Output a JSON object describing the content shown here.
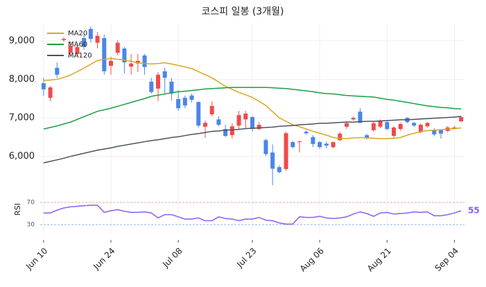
{
  "chart_data": [
    {
      "type": "candlestick",
      "title": "코스피 일봉 (3개월)",
      "categories": [
        "Jun 10",
        null,
        null,
        null,
        null,
        null,
        null,
        null,
        null,
        null,
        "Jun 24",
        null,
        null,
        null,
        null,
        null,
        null,
        null,
        null,
        null,
        "Jul 08",
        null,
        null,
        null,
        null,
        null,
        null,
        null,
        null,
        null,
        null,
        "Jul 23",
        null,
        null,
        null,
        null,
        null,
        null,
        null,
        null,
        null,
        "Aug 06",
        null,
        null,
        null,
        null,
        null,
        null,
        null,
        null,
        null,
        "Aug 21",
        null,
        null,
        null,
        null,
        null,
        null,
        null,
        null,
        null,
        "Sep 04",
        null
      ],
      "open": [
        7900,
        7520,
        8300,
        9020,
        8690,
        8660,
        9070,
        9310,
        8950,
        9070,
        8350,
        8690,
        8800,
        8330,
        8410,
        8620,
        7940,
        7760,
        8210,
        7940,
        7490,
        7520,
        7580,
        7410,
        6770,
        7090,
        6960,
        6710,
        6550,
        6800,
        6960,
        7020,
        6710,
        6420,
        6100,
        5720,
        5670,
        6370,
        6370,
        6640,
        6500,
        6370,
        6330,
        6240,
        6420,
        6770,
        6960,
        7160,
        6550,
        6680,
        6770,
        6890,
        6530,
        6710,
        7000,
        6870,
        6640,
        6780,
        6680,
        6680,
        6660,
        6730,
        6910
      ],
      "high": [
        8040,
        7830,
        8440,
        9090,
        8980,
        8900,
        9160,
        9380,
        9230,
        9160,
        8590,
        9020,
        8840,
        8660,
        8660,
        8660,
        8040,
        8190,
        8300,
        8040,
        7720,
        7580,
        7630,
        7430,
        6930,
        7430,
        7040,
        6820,
        6860,
        7180,
        7180,
        7040,
        6890,
        6460,
        6310,
        5770,
        6640,
        6400,
        6400,
        6680,
        6550,
        6400,
        6390,
        6390,
        6640,
        6910,
        7040,
        7250,
        6590,
        6910,
        6960,
        6930,
        6780,
        6870,
        7020,
        6890,
        6860,
        6890,
        6730,
        6710,
        6790,
        6790,
        7040
      ],
      "low": [
        7570,
        7430,
        8040,
        8980,
        8590,
        8600,
        8770,
        8950,
        8800,
        8120,
        8120,
        8620,
        8150,
        8120,
        8190,
        8120,
        7630,
        7430,
        7630,
        7450,
        7180,
        7250,
        7400,
        6750,
        6480,
        7040,
        6780,
        6500,
        6460,
        6710,
        6710,
        6640,
        6680,
        6010,
        5250,
        5560,
        5630,
        6210,
        6100,
        6560,
        6240,
        6190,
        6210,
        6210,
        6390,
        6710,
        6930,
        6860,
        6440,
        6640,
        6730,
        6680,
        6460,
        6660,
        6860,
        6770,
        6600,
        6750,
        6520,
        6460,
        6630,
        6700,
        6880
      ],
      "close": [
        7740,
        7790,
        8120,
        9050,
        8870,
        8840,
        8840,
        9050,
        9130,
        8210,
        8480,
        8950,
        8440,
        8410,
        8480,
        8320,
        7670,
        8120,
        8040,
        7630,
        7250,
        7320,
        7470,
        6800,
        6870,
        7310,
        6820,
        6530,
        6780,
        7070,
        7110,
        6710,
        6820,
        6060,
        5680,
        5590,
        6600,
        6240,
        6390,
        6600,
        6320,
        6240,
        6280,
        6370,
        6590,
        6860,
        7000,
        6870,
        6480,
        6860,
        6930,
        6710,
        6750,
        6840,
        6890,
        6800,
        6820,
        6870,
        6570,
        6590,
        6750,
        6750,
        7020
      ],
      "up_color": "#ef4b4b",
      "down_color": "#4a86e8",
      "series": [
        {
          "name": "MA20",
          "color": "#daa520",
          "values": [
            7970,
            7980,
            8000,
            8050,
            8110,
            8200,
            8290,
            8390,
            8490,
            8520,
            8540,
            8520,
            8500,
            8470,
            8430,
            8410,
            8400,
            8410,
            8430,
            8400,
            8360,
            8320,
            8280,
            8200,
            8120,
            8040,
            7930,
            7820,
            7740,
            7660,
            7600,
            7530,
            7430,
            7320,
            7160,
            7000,
            6910,
            6820,
            6770,
            6710,
            6650,
            6600,
            6550,
            6490,
            6470,
            6460,
            6480,
            6490,
            6480,
            6470,
            6460,
            6460,
            6470,
            6490,
            6550,
            6600,
            6640,
            6670,
            6680,
            6690,
            6710,
            6720,
            6740
          ]
        },
        {
          "name": "MA60",
          "color": "#1a9e3f",
          "values": [
            6710,
            6750,
            6790,
            6840,
            6890,
            6960,
            7030,
            7100,
            7170,
            7210,
            7250,
            7300,
            7350,
            7400,
            7450,
            7500,
            7560,
            7590,
            7620,
            7650,
            7680,
            7690,
            7710,
            7730,
            7750,
            7760,
            7770,
            7780,
            7790,
            7790,
            7790,
            7790,
            7790,
            7790,
            7780,
            7770,
            7760,
            7740,
            7720,
            7700,
            7680,
            7650,
            7630,
            7620,
            7600,
            7580,
            7570,
            7560,
            7550,
            7540,
            7510,
            7480,
            7460,
            7430,
            7400,
            7370,
            7340,
            7310,
            7290,
            7270,
            7260,
            7240,
            7230
          ]
        },
        {
          "name": "MA120",
          "color": "#4a5260",
          "values": [
            5830,
            5870,
            5910,
            5950,
            6000,
            6040,
            6080,
            6120,
            6160,
            6190,
            6220,
            6260,
            6290,
            6320,
            6350,
            6380,
            6410,
            6430,
            6460,
            6490,
            6510,
            6540,
            6570,
            6590,
            6620,
            6650,
            6660,
            6680,
            6690,
            6700,
            6720,
            6730,
            6740,
            6750,
            6760,
            6780,
            6790,
            6800,
            6820,
            6830,
            6840,
            6860,
            6860,
            6870,
            6880,
            6890,
            6890,
            6900,
            6910,
            6910,
            6920,
            6930,
            6940,
            6950,
            6950,
            6960,
            6970,
            6980,
            6990,
            7000,
            7010,
            7020,
            7040
          ]
        }
      ],
      "ylim": [
        5200,
        9430
      ],
      "yticks": [
        {
          "value": 6000,
          "label": "6,000"
        },
        {
          "value": 7000,
          "label": "7,000"
        },
        {
          "value": 8000,
          "label": "8,000"
        },
        {
          "value": 9000,
          "label": "9,000"
        }
      ],
      "grid": true,
      "legend": "upper-left"
    },
    {
      "type": "line",
      "ylabel": "RSI",
      "color": "#8b5cf6",
      "values": [
        51,
        51,
        56,
        60,
        62,
        63,
        64,
        65,
        65,
        52,
        55,
        57,
        54,
        52,
        52,
        53,
        51,
        42,
        48,
        48,
        44,
        40,
        40,
        42,
        37,
        37,
        44,
        41,
        40,
        37,
        40,
        40,
        43,
        38,
        37,
        33,
        31,
        31,
        44,
        43,
        43,
        45,
        42,
        41,
        42,
        44,
        49,
        53,
        50,
        45,
        51,
        52,
        49,
        50,
        51,
        53,
        52,
        53,
        46,
        46,
        48,
        51,
        55
      ],
      "ylim": [
        15,
        85
      ],
      "yticks": [
        30,
        70
      ],
      "ytick_colors": [
        "#8fb0e0",
        "#f0a0a0"
      ],
      "last_value_label": true
    }
  ]
}
